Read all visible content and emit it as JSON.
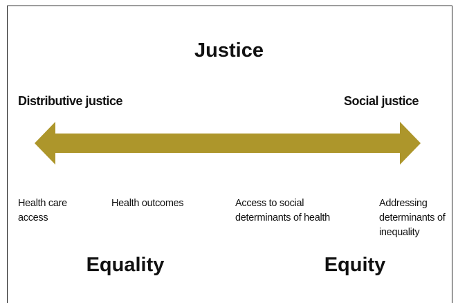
{
  "title": "Justice",
  "left_label": "Distributive justice",
  "right_label": "Social justice",
  "items": [
    {
      "lines": [
        "Health care",
        "access"
      ]
    },
    {
      "lines": [
        "Health outcomes"
      ]
    },
    {
      "lines": [
        "Access to social",
        "determinants of health"
      ]
    },
    {
      "lines": [
        "Addressing",
        "determinants of",
        "inequality"
      ]
    }
  ],
  "bottom_left": "Equality",
  "bottom_right": "Equity"
}
